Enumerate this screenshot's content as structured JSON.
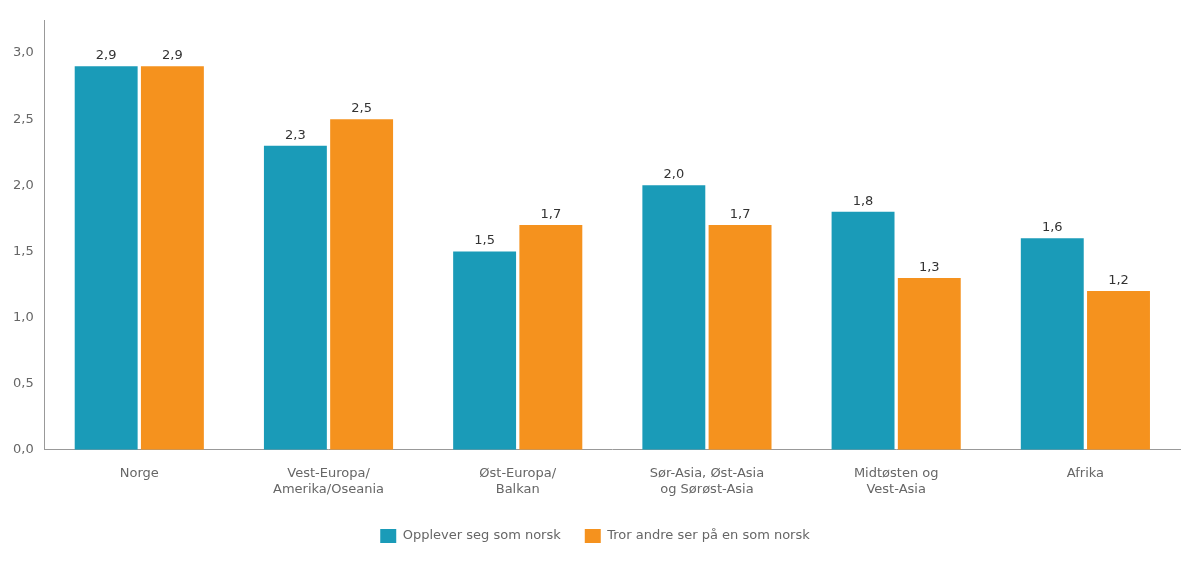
{
  "chart_data": {
    "type": "bar",
    "categories": [
      "Norge",
      "Vest-Europa/\nAmerika/Oseania",
      "Øst-Europa/\nBalkan",
      "Sør-Asia, Øst-Asia\nog Sørøst-Asia",
      "Midtøsten og\nVest-Asia",
      "Afrika"
    ],
    "series": [
      {
        "name": "Opplever seg som norsk",
        "color": "#1a9bb8",
        "values": [
          2.9,
          2.3,
          1.5,
          2.0,
          1.8,
          1.6
        ],
        "value_labels": [
          "2,9",
          "2,3",
          "1,5",
          "2,0",
          "1,8",
          "1,6"
        ]
      },
      {
        "name": "Tror andre ser på en som norsk",
        "color": "#f5921e",
        "values": [
          2.9,
          2.5,
          1.7,
          1.7,
          1.3,
          1.2
        ],
        "value_labels": [
          "2,9",
          "2,5",
          "1,7",
          "1,7",
          "1,3",
          "1,2"
        ]
      }
    ],
    "ylim": [
      0,
      3.25
    ],
    "yticks": [
      {
        "value": 0.0,
        "label": "0,0"
      },
      {
        "value": 0.5,
        "label": "0,5"
      },
      {
        "value": 1.0,
        "label": "1,0"
      },
      {
        "value": 1.5,
        "label": "1,5"
      },
      {
        "value": 2.0,
        "label": "2,0"
      },
      {
        "value": 2.5,
        "label": "2,5"
      },
      {
        "value": 3.0,
        "label": "3,0"
      }
    ],
    "grid": false,
    "legend": "bottom",
    "data_labels": true
  }
}
